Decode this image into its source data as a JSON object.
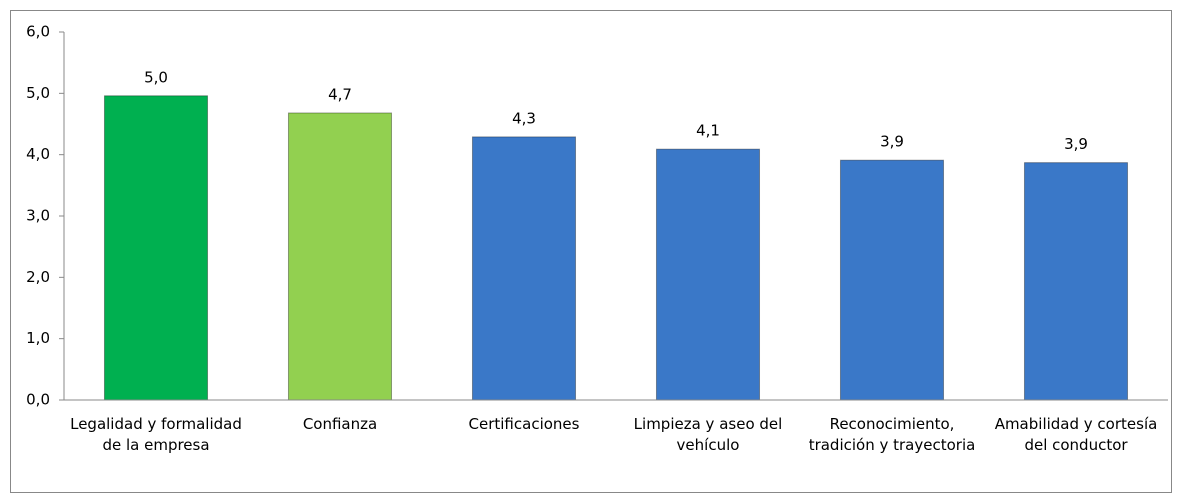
{
  "chart_data": {
    "type": "bar",
    "categories": [
      "Legalidad y formalidad de la empresa",
      "Confianza",
      "Certificaciones",
      "Limpieza y aseo del vehículo",
      "Reconocimiento, tradición y trayectoria",
      "Amabilidad y cortesía del conductor"
    ],
    "values": [
      4.96,
      4.68,
      4.29,
      4.09,
      3.91,
      3.87
    ],
    "value_labels": [
      "5,0",
      "4,7",
      "4,3",
      "4,1",
      "3,9",
      "3,9"
    ],
    "colors": [
      "#00b050",
      "#92d050",
      "#3a78c8",
      "#3a78c8",
      "#3a78c8",
      "#3a78c8"
    ],
    "ylim": [
      0,
      6
    ],
    "yticks": [
      {
        "value": 0,
        "label": "0,0"
      },
      {
        "value": 1,
        "label": "1,0"
      },
      {
        "value": 2,
        "label": "2,0"
      },
      {
        "value": 3,
        "label": "3,0"
      },
      {
        "value": 4,
        "label": "4,0"
      },
      {
        "value": 5,
        "label": "5,0"
      },
      {
        "value": 6,
        "label": "6,0"
      }
    ],
    "grid": false
  }
}
